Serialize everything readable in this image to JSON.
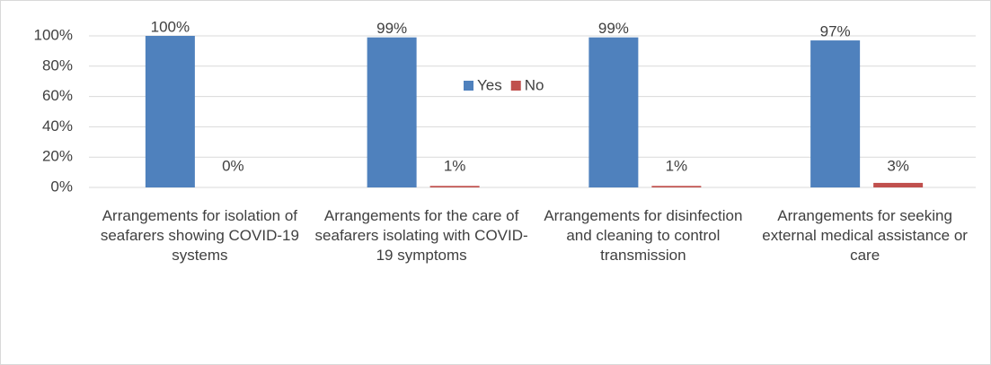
{
  "chart_data": {
    "type": "bar",
    "categories": [
      "Arrangements for isolation of seafarers showing COVID-19 systems",
      "Arrangements for the care of seafarers isolating with COVID-19 symptoms",
      "Arrangements for disinfection and cleaning to control transmission",
      "Arrangements for seeking external medical assistance or care"
    ],
    "series": [
      {
        "name": "Yes",
        "color": "#4f81bd",
        "values": [
          100,
          99,
          99,
          97
        ],
        "value_labels": [
          "100%",
          "99%",
          "99%",
          "97%"
        ]
      },
      {
        "name": "No",
        "color": "#c0504d",
        "values": [
          0,
          1,
          1,
          3
        ],
        "value_labels": [
          "0%",
          "1%",
          "1%",
          "3%"
        ]
      }
    ],
    "ylim": [
      0,
      100
    ],
    "yticks": [
      {
        "value": 0,
        "label": "0%"
      },
      {
        "value": 20,
        "label": "20%"
      },
      {
        "value": 40,
        "label": "40%"
      },
      {
        "value": 60,
        "label": "60%"
      },
      {
        "value": 80,
        "label": "80%"
      },
      {
        "value": 100,
        "label": "100%"
      }
    ],
    "grid": true,
    "legend": "top"
  }
}
